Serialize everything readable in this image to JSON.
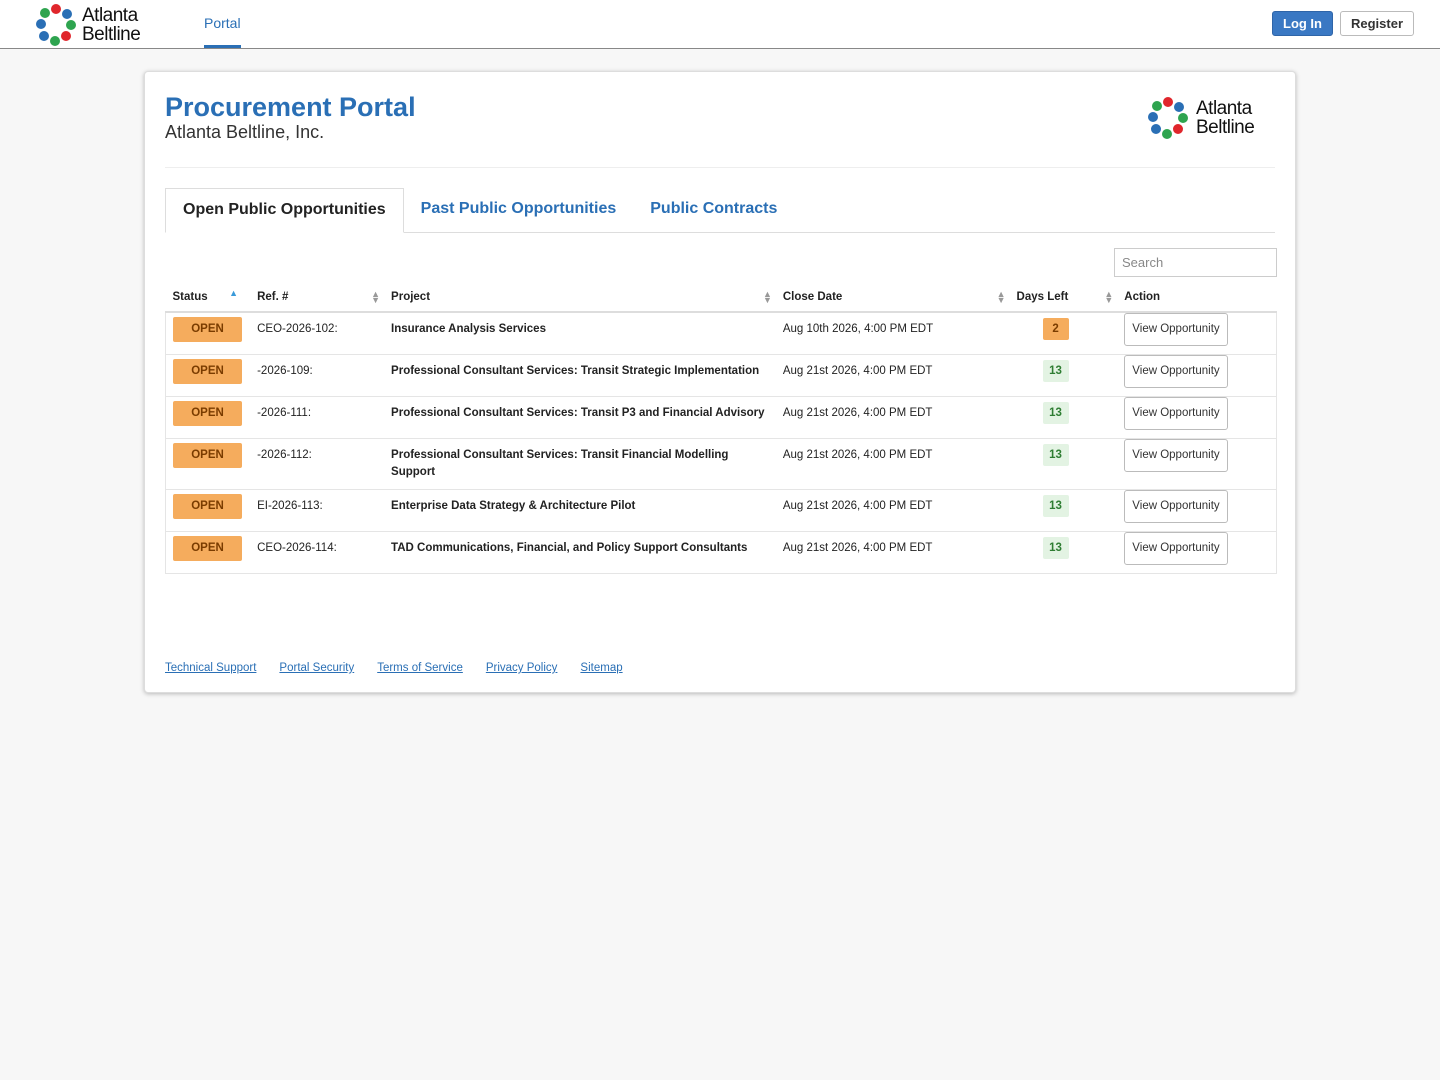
{
  "nav": {
    "logo": {
      "line1": "Atlanta",
      "line2": "Beltline"
    },
    "link": "Portal",
    "login": "Log In",
    "register": "Register"
  },
  "header": {
    "title": "Procurement Portal",
    "subtitle": "Atlanta Beltline, Inc.",
    "logo": {
      "line1": "Atlanta",
      "line2": "Beltline"
    }
  },
  "tabs": [
    "Open Public Opportunities",
    "Past Public Opportunities",
    "Public Contracts"
  ],
  "search_placeholder": "Search",
  "table": {
    "columns": [
      "Status",
      "Ref. #",
      "Project",
      "Close Date",
      "Days Left",
      "Action"
    ],
    "rows": [
      [
        "OPEN",
        "CEO-2026-102:",
        "Insurance Analysis Services",
        "Aug 10th 2026, 4:00 PM EDT",
        2,
        "View Opportunity"
      ],
      [
        "OPEN",
        "-2026-109:",
        "Professional Consultant Services: Transit Strategic Implementation",
        "Aug 21st 2026, 4:00 PM EDT",
        13,
        "View Opportunity"
      ],
      [
        "OPEN",
        "-2026-111:",
        "Professional Consultant Services: Transit P3 and Financial Advisory",
        "Aug 21st 2026, 4:00 PM EDT",
        13,
        "View Opportunity"
      ],
      [
        "OPEN",
        "-2026-112:",
        "Professional Consultant Services: Transit Financial Modelling Support",
        "Aug 21st 2026, 4:00 PM EDT",
        13,
        "View Opportunity"
      ],
      [
        "OPEN",
        "EI-2026-113:",
        "Enterprise Data Strategy & Architecture Pilot",
        "Aug 21st 2026, 4:00 PM EDT",
        13,
        "View Opportunity"
      ],
      [
        "OPEN",
        "CEO-2026-114:",
        "TAD Communications, Financial, and Policy Support Consultants",
        "Aug 21st 2026, 4:00 PM EDT",
        13,
        "View Opportunity"
      ]
    ]
  },
  "footer": [
    "Technical Support",
    "Portal Security",
    "Terms of Service",
    "Privacy Policy",
    "Sitemap"
  ]
}
